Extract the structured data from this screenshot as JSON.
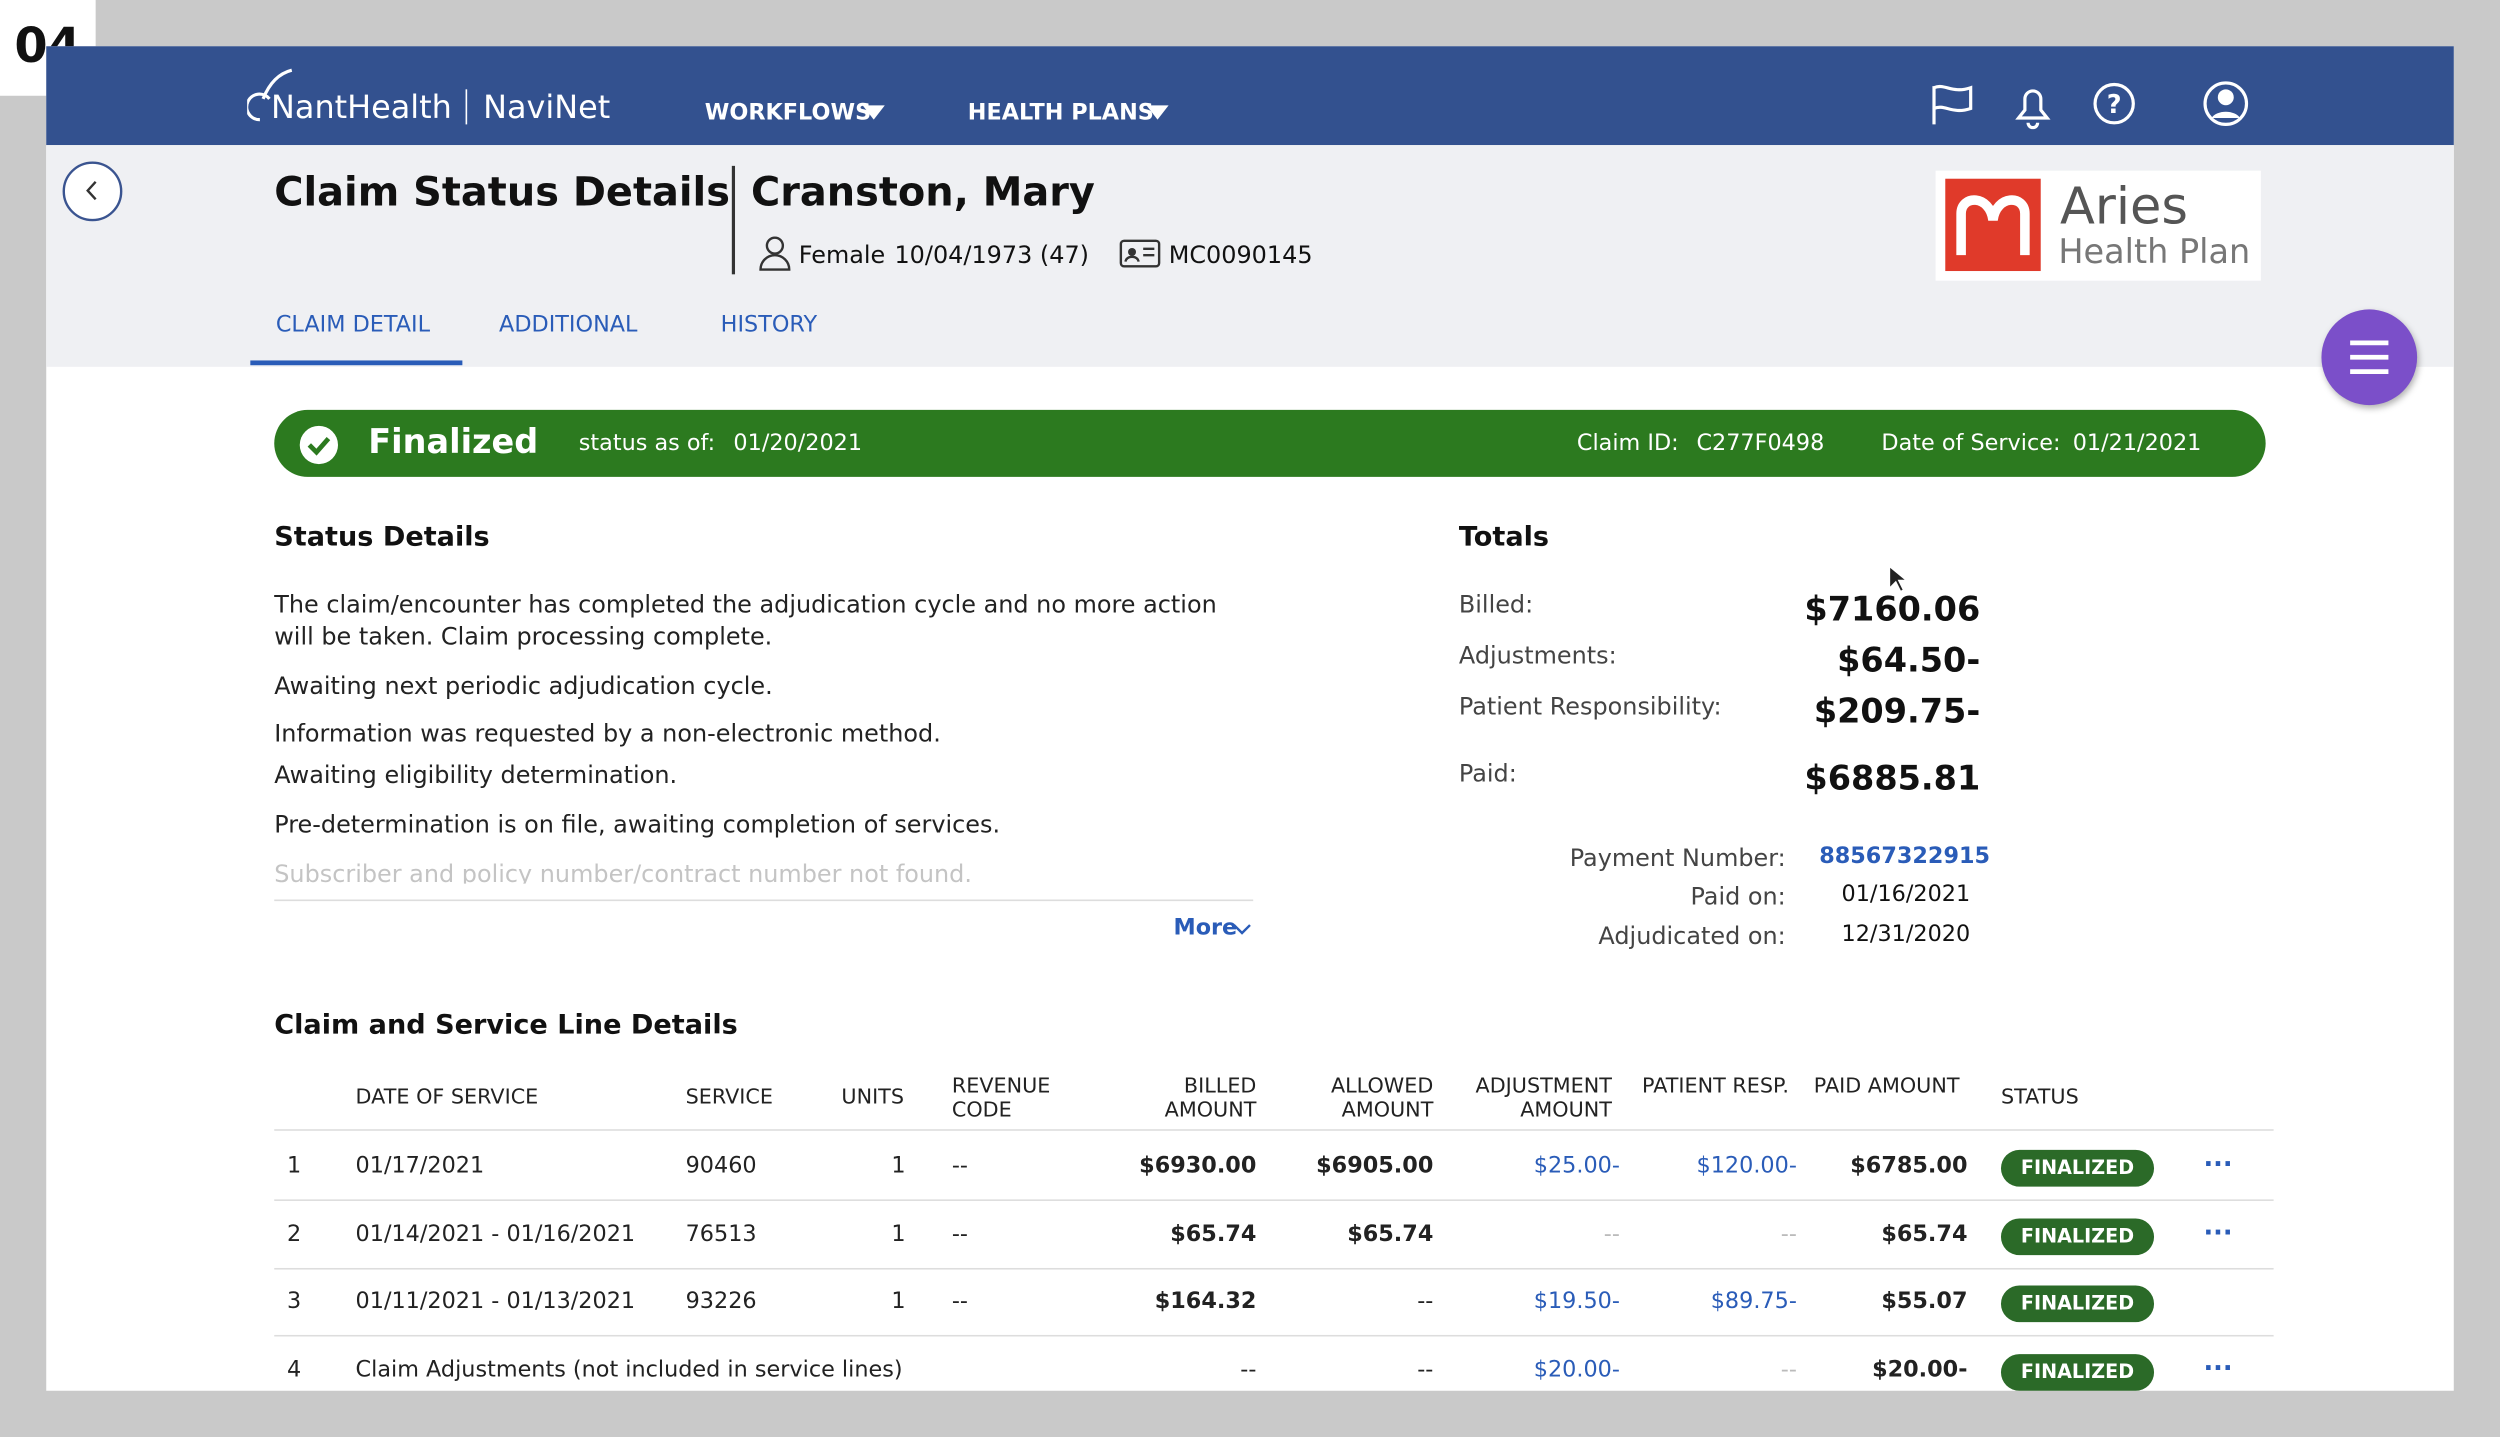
{
  "step": "04",
  "nav": {
    "brand": "NantHealth",
    "product": "NaviNet",
    "menus": [
      "WORKFLOWS",
      "HEALTH PLANS"
    ]
  },
  "page_title": "Claim Status Details",
  "patient": {
    "name": "Cranston, Mary",
    "gender": "Female",
    "dob": "10/04/1973 (47)",
    "member_id": "MC0090145"
  },
  "plan": {
    "name": "Aries",
    "subtitle": "Health Plan"
  },
  "tabs": [
    "CLAIM DETAIL",
    "ADDITIONAL",
    "HISTORY"
  ],
  "banner": {
    "status": "Finalized",
    "status_as_of_label": "status as of:",
    "status_as_of": "01/20/2021",
    "claim_id_label": "Claim ID:",
    "claim_id": "C277F0498",
    "dos_label": "Date of Service:",
    "dos": "01/21/2021"
  },
  "status_details": {
    "title": "Status Details",
    "items": [
      "The claim/encounter has completed the adjudication cycle and no more action will be taken.  Claim  processing complete.",
      "Awaiting next periodic adjudication cycle.",
      "Information was requested by a non-electronic method.",
      "Awaiting eligibility determination.",
      "Pre-determination is on file, awaiting completion of services.",
      "Subscriber and policy number/contract number not found."
    ],
    "more": "More"
  },
  "totals": {
    "title": "Totals",
    "rows": [
      {
        "label": "Billed:",
        "value": "$7160.06"
      },
      {
        "label": "Adjustments:",
        "value": "$64.50-"
      },
      {
        "label": "Patient Responsibility:",
        "value": "$209.75-"
      },
      {
        "label": "Paid:",
        "value": "$6885.81"
      }
    ],
    "payment": [
      {
        "label": "Payment Number:",
        "value": "88567322915"
      },
      {
        "label": "Paid on:",
        "value": "01/16/2021"
      },
      {
        "label": "Adjudicated on:",
        "value": "12/31/2020"
      }
    ]
  },
  "table": {
    "title": "Claim and Service Line Details",
    "headers": [
      "DATE OF SERVICE",
      "SERVICE",
      "UNITS",
      "REVENUE CODE",
      "BILLED AMOUNT",
      "ALLOWED AMOUNT",
      "ADJUSTMENT AMOUNT",
      "PATIENT RESP.",
      "PAID AMOUNT",
      "STATUS"
    ],
    "rows": [
      {
        "number": "1",
        "date": "01/17/2021",
        "service": "90460",
        "units": "1",
        "revenue_code": "--",
        "billed": "$6930.00",
        "allowed": "$6905.00",
        "adjustment": "$25.00-",
        "patient_resp": "$120.00-",
        "paid": "$6785.00",
        "status": "FINALIZED",
        "actions": "···"
      },
      {
        "number": "2",
        "date": "01/14/2021 - 01/16/2021",
        "service": "76513",
        "units": "1",
        "revenue_code": "--",
        "billed": "$65.74",
        "allowed": "$65.74",
        "adjustment": "--",
        "patient_resp": "--",
        "paid": "$65.74",
        "status": "FINALIZED",
        "actions": "···"
      },
      {
        "number": "3",
        "date": "01/11/2021 - 01/13/2021",
        "service": "93226",
        "units": "1",
        "revenue_code": "--",
        "billed": "$164.32",
        "allowed": "--",
        "adjustment": "$19.50-",
        "patient_resp": "$89.75-",
        "paid": "$55.07",
        "status": "FINALIZED"
      },
      {
        "number": "4",
        "date": "Claim Adjustments (not included in service lines)",
        "billed": "--",
        "allowed": "--",
        "adjustment": "$20.00-",
        "patient_resp": "--",
        "paid": "$20.00-",
        "status": "FINALIZED",
        "actions": "···"
      }
    ]
  }
}
